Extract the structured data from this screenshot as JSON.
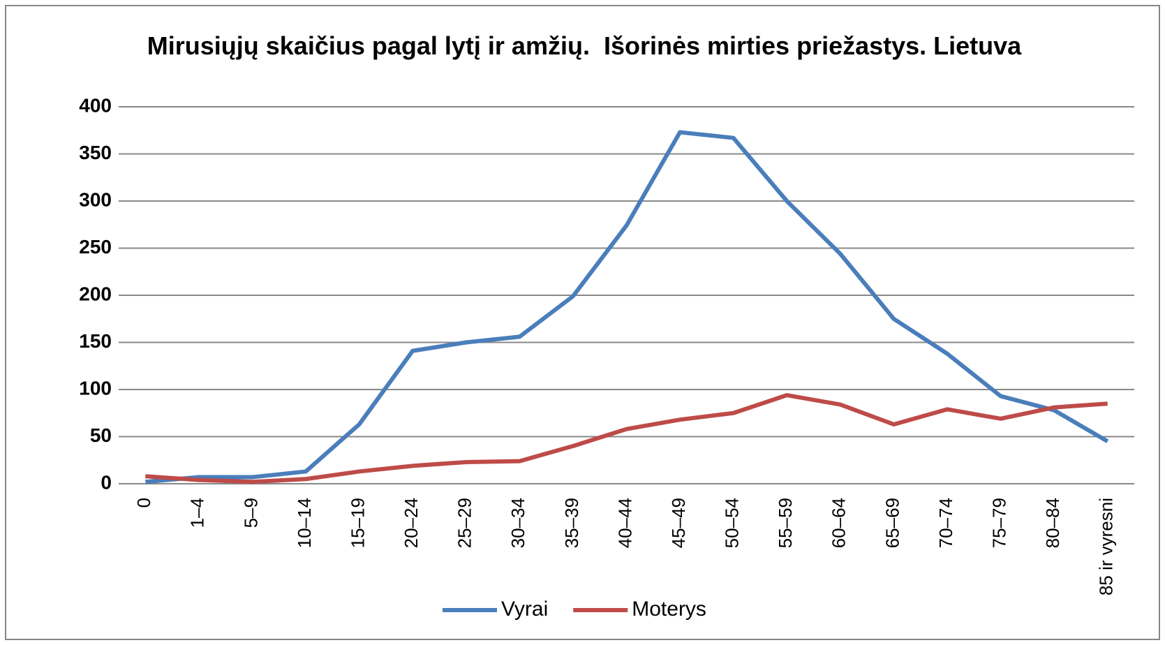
{
  "chart_data": {
    "type": "line",
    "title": "Mirusiųjų skaičius pagal lytį ir amžių.  Išorinės mirties priežastys. Lietuva",
    "categories": [
      "0",
      "1–4",
      "5–9",
      "10–14",
      "15–19",
      "20–24",
      "25–29",
      "30–34",
      "35–39",
      "40–44",
      "45–49",
      "50–54",
      "55–59",
      "60–64",
      "65–69",
      "70–74",
      "75–79",
      "80–84",
      "85 ir vyresni"
    ],
    "series": [
      {
        "name": "Vyrai",
        "color": "#4a7ebb",
        "values": [
          2,
          7,
          7,
          13,
          63,
          141,
          150,
          156,
          199,
          274,
          373,
          367,
          300,
          244,
          175,
          138,
          93,
          78,
          45
        ]
      },
      {
        "name": "Moterys",
        "color": "#be4b48",
        "values": [
          8,
          4,
          2,
          5,
          13,
          19,
          23,
          24,
          40,
          58,
          68,
          75,
          94,
          84,
          63,
          79,
          69,
          81,
          85
        ]
      }
    ],
    "ylim": [
      0,
      400
    ],
    "yticks": [
      0,
      50,
      100,
      150,
      200,
      250,
      300,
      350,
      400
    ],
    "grid": true,
    "legend": "bottom"
  }
}
